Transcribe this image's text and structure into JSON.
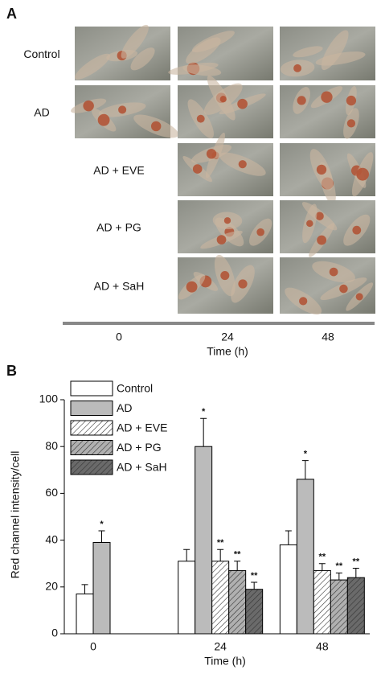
{
  "panel_a": {
    "label": "A",
    "rows": [
      "Control",
      "AD",
      "AD + EVE",
      "AD + PG",
      "AD + SaH"
    ],
    "columns": [
      "0",
      "24",
      "48"
    ],
    "axis_label": "Time (h)"
  },
  "chart_data": {
    "type": "bar",
    "panel_label": "B",
    "xlabel": "Time (h)",
    "ylabel": "Red channel intensity/cell",
    "categories": [
      "0",
      "24",
      "48"
    ],
    "ylim": [
      0,
      100
    ],
    "yticks": [
      0,
      20,
      40,
      60,
      80,
      100
    ],
    "legend": "upper left",
    "series": [
      {
        "name": "Control",
        "color": "#ffffff",
        "hatch": false,
        "values": [
          17,
          31,
          38
        ],
        "errors": [
          4,
          5,
          6
        ]
      },
      {
        "name": "AD",
        "color": "#bbbbbb",
        "hatch": false,
        "values": [
          39,
          80,
          66
        ],
        "errors": [
          5,
          12,
          8
        ],
        "significance": [
          "*",
          "*",
          "*"
        ]
      },
      {
        "name": "AD + EVE",
        "color": "#ffffff",
        "hatch": true,
        "values": [
          null,
          31,
          27
        ],
        "errors": [
          null,
          5,
          3
        ],
        "significance": [
          null,
          "**",
          "**"
        ]
      },
      {
        "name": "AD + PG",
        "color": "#b0b0b0",
        "hatch": true,
        "values": [
          null,
          27,
          23
        ],
        "errors": [
          null,
          4,
          3
        ],
        "significance": [
          null,
          "**",
          "**"
        ]
      },
      {
        "name": "AD + SaH",
        "color": "#6a6a6a",
        "hatch": true,
        "values": [
          null,
          19,
          24
        ],
        "errors": [
          null,
          3,
          4
        ],
        "significance": [
          null,
          "**",
          "**"
        ]
      }
    ]
  }
}
